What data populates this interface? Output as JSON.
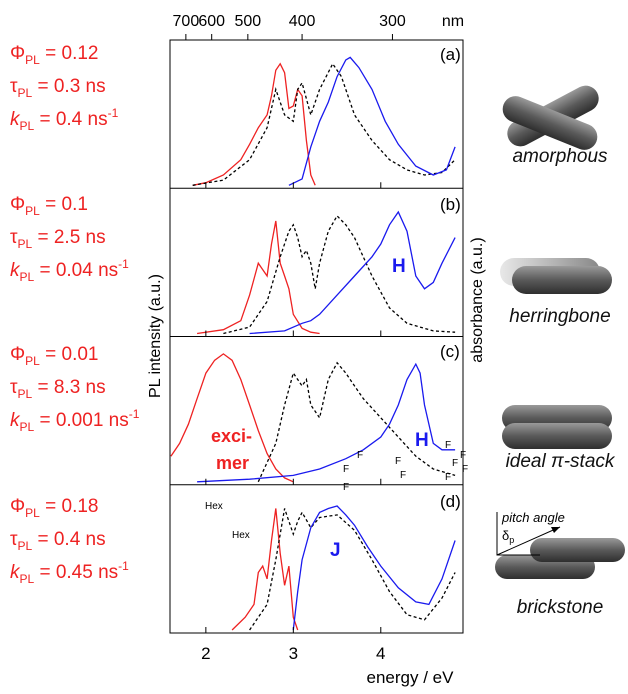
{
  "figure": {
    "ylabel": "PL intensity (a.u.)",
    "y2label": "absorbance (a.u.)"
  },
  "chart_data": [
    {
      "type": "line",
      "panel_label": "(a)",
      "xlim": [
        1.59,
        4.94
      ],
      "ylim": [
        0,
        1.05
      ],
      "x2ticks": [
        700,
        600,
        500,
        400,
        300
      ],
      "x2label": "nm",
      "photophysics": [
        {
          "symbol": "Φ",
          "sub": "PL",
          "text": " = 0.12"
        },
        {
          "symbol": "τ",
          "sub": "PL",
          "text": " = 0.3 ns"
        },
        {
          "symbol": "k",
          "sub": "PL",
          "text": " = 0.4 ns",
          "sup": "-1"
        }
      ],
      "packing": "amorphous",
      "series": [
        {
          "color": "#ee2222",
          "x": [
            1.85,
            2.0,
            2.2,
            2.4,
            2.5,
            2.6,
            2.7,
            2.75,
            2.8,
            2.85,
            2.9,
            2.95,
            3.0,
            3.05,
            3.1,
            3.15,
            3.2,
            3.25
          ],
          "values": [
            0,
            0.02,
            0.08,
            0.2,
            0.32,
            0.45,
            0.55,
            0.7,
            0.9,
            0.95,
            0.88,
            0.6,
            0.62,
            0.75,
            0.7,
            0.35,
            0.08,
            0
          ]
        },
        {
          "color": "#000000",
          "dash": true,
          "x": [
            1.85,
            2.2,
            2.5,
            2.7,
            2.8,
            2.9,
            3.0,
            3.05,
            3.1,
            3.2,
            3.3,
            3.45,
            3.55,
            3.7,
            3.9,
            4.1,
            4.3,
            4.5,
            4.7,
            4.85
          ],
          "values": [
            0,
            0.04,
            0.2,
            0.45,
            0.75,
            0.55,
            0.5,
            0.75,
            0.8,
            0.55,
            0.75,
            0.95,
            0.85,
            0.55,
            0.35,
            0.2,
            0.12,
            0.08,
            0.1,
            0.2
          ]
        },
        {
          "color": "#1a1aee",
          "x": [
            2.95,
            3.1,
            3.2,
            3.3,
            3.4,
            3.5,
            3.6,
            3.65,
            3.75,
            3.9,
            4.05,
            4.2,
            4.4,
            4.6,
            4.75,
            4.85
          ],
          "values": [
            0,
            0.05,
            0.3,
            0.5,
            0.65,
            0.85,
            0.98,
            1.0,
            0.92,
            0.75,
            0.5,
            0.32,
            0.15,
            0.08,
            0.12,
            0.3
          ]
        }
      ]
    },
    {
      "type": "line",
      "panel_label": "(b)",
      "xlim": [
        1.59,
        4.94
      ],
      "ylim": [
        0,
        1.05
      ],
      "photophysics": [
        {
          "symbol": "Φ",
          "sub": "PL",
          "text": " = 0.1"
        },
        {
          "symbol": "τ",
          "sub": "PL",
          "text": " = 2.5 ns"
        },
        {
          "symbol": "k",
          "sub": "PL",
          "text": " = 0.04 ns",
          "sup": "-1"
        }
      ],
      "packing": "herringbone",
      "band_label": "H",
      "series": [
        {
          "color": "#ee2222",
          "x": [
            1.9,
            2.2,
            2.4,
            2.5,
            2.6,
            2.65,
            2.7,
            2.75,
            2.8,
            2.85,
            2.9,
            2.95,
            3.0,
            3.1,
            3.2,
            3.3
          ],
          "values": [
            0,
            0.03,
            0.1,
            0.3,
            0.55,
            0.5,
            0.45,
            0.7,
            0.88,
            0.55,
            0.45,
            0.35,
            0.15,
            0.04,
            0.01,
            0
          ]
        },
        {
          "color": "#000000",
          "dash": true,
          "x": [
            2.2,
            2.5,
            2.7,
            2.85,
            2.95,
            3.0,
            3.05,
            3.1,
            3.15,
            3.2,
            3.25,
            3.3,
            3.4,
            3.5,
            3.6,
            3.7,
            3.9,
            4.1,
            4.3,
            4.6,
            4.85
          ],
          "values": [
            0,
            0.05,
            0.25,
            0.6,
            0.8,
            0.85,
            0.75,
            0.6,
            0.65,
            0.55,
            0.35,
            0.55,
            0.8,
            0.92,
            0.85,
            0.75,
            0.45,
            0.2,
            0.08,
            0.02,
            0.01
          ]
        },
        {
          "color": "#1a1aee",
          "x": [
            2.5,
            2.9,
            3.1,
            3.2,
            3.3,
            3.5,
            3.7,
            3.9,
            4.0,
            4.1,
            4.2,
            4.3,
            4.4,
            4.5,
            4.6,
            4.7,
            4.85
          ],
          "values": [
            0,
            0.02,
            0.08,
            0.1,
            0.15,
            0.3,
            0.45,
            0.6,
            0.7,
            0.85,
            0.95,
            0.8,
            0.45,
            0.35,
            0.4,
            0.55,
            0.75
          ]
        }
      ]
    },
    {
      "type": "line",
      "panel_label": "(c)",
      "xlim": [
        1.59,
        4.94
      ],
      "ylim": [
        0,
        1.05
      ],
      "photophysics": [
        {
          "symbol": "Φ",
          "sub": "PL",
          "text": " = 0.01"
        },
        {
          "symbol": "τ",
          "sub": "PL",
          "text": " = 8.3 ns"
        },
        {
          "symbol": "k",
          "sub": "PL",
          "text": " = 0.001 ns",
          "sup": "-1"
        }
      ],
      "packing": "ideal π-stack",
      "band_label": "H",
      "emission_label": [
        "exci-",
        "mer"
      ],
      "structure_labels": [
        "F",
        "F",
        "F",
        "F",
        "F",
        "F",
        "F",
        "F",
        "F",
        "F"
      ],
      "series": [
        {
          "color": "#ee2222",
          "x": [
            1.6,
            1.7,
            1.8,
            1.9,
            2.0,
            2.1,
            2.2,
            2.3,
            2.4,
            2.5,
            2.6,
            2.7,
            2.8,
            2.9,
            3.0
          ],
          "values": [
            0.2,
            0.3,
            0.45,
            0.65,
            0.85,
            0.95,
            1.0,
            0.95,
            0.8,
            0.6,
            0.4,
            0.22,
            0.1,
            0.03,
            0
          ]
        },
        {
          "color": "#000000",
          "dash": true,
          "x": [
            2.6,
            2.8,
            2.9,
            3.0,
            3.05,
            3.1,
            3.15,
            3.2,
            3.3,
            3.4,
            3.5,
            3.6,
            3.7,
            3.8,
            4.0,
            4.2,
            4.4,
            4.6,
            4.85
          ],
          "values": [
            0,
            0.3,
            0.6,
            0.85,
            0.8,
            0.75,
            0.8,
            0.6,
            0.5,
            0.8,
            0.93,
            0.85,
            0.75,
            0.65,
            0.5,
            0.35,
            0.2,
            0.1,
            0.05
          ]
        },
        {
          "color": "#1a1aee",
          "x": [
            1.9,
            2.5,
            3.0,
            3.3,
            3.6,
            3.8,
            4.0,
            4.1,
            4.2,
            4.3,
            4.4,
            4.45,
            4.5,
            4.6,
            4.7,
            4.85
          ],
          "values": [
            0,
            0.02,
            0.05,
            0.1,
            0.18,
            0.25,
            0.35,
            0.45,
            0.6,
            0.8,
            0.92,
            0.85,
            0.6,
            0.3,
            0.25,
            0.25
          ]
        }
      ]
    },
    {
      "type": "line",
      "panel_label": "(d)",
      "xlim": [
        1.59,
        4.94
      ],
      "ylim": [
        0,
        1.05
      ],
      "xticks": [
        2,
        3,
        4
      ],
      "xlabel": "energy  /  eV",
      "photophysics": [
        {
          "symbol": "Φ",
          "sub": "PL",
          "text": " = 0.18"
        },
        {
          "symbol": "τ",
          "sub": "PL",
          "text": " = 0.4 ns"
        },
        {
          "symbol": "k",
          "sub": "PL",
          "text": " = 0.45 ns",
          "sup": "-1"
        }
      ],
      "packing": "brickstone",
      "band_label": "J",
      "structure_labels": [
        "Hex",
        "Hex"
      ],
      "pitch_label": "pitch angle",
      "delta": {
        "symbol": "δ",
        "sub": "p"
      },
      "series": [
        {
          "color": "#ee2222",
          "x": [
            2.3,
            2.45,
            2.55,
            2.6,
            2.65,
            2.7,
            2.75,
            2.8,
            2.85,
            2.9,
            2.95,
            3.0,
            3.05
          ],
          "values": [
            0,
            0.1,
            0.2,
            0.45,
            0.5,
            0.4,
            0.7,
            0.95,
            0.6,
            0.35,
            0.5,
            0.1,
            0
          ]
        },
        {
          "color": "#000000",
          "dash": true,
          "x": [
            2.5,
            2.7,
            2.8,
            2.9,
            2.95,
            3.0,
            3.05,
            3.1,
            3.2,
            3.3,
            3.5,
            3.7,
            3.9,
            4.1,
            4.3,
            4.5,
            4.7,
            4.85
          ],
          "values": [
            0,
            0.2,
            0.55,
            0.95,
            0.85,
            0.75,
            0.85,
            0.92,
            0.8,
            0.88,
            0.9,
            0.78,
            0.55,
            0.3,
            0.12,
            0.08,
            0.25,
            0.45
          ]
        },
        {
          "color": "#1a1aee",
          "x": [
            3.0,
            3.05,
            3.1,
            3.2,
            3.3,
            3.4,
            3.5,
            3.6,
            3.7,
            3.85,
            4.0,
            4.2,
            4.4,
            4.55,
            4.7,
            4.85
          ],
          "values": [
            0,
            0.3,
            0.55,
            0.8,
            0.92,
            0.95,
            0.97,
            0.9,
            0.82,
            0.65,
            0.5,
            0.33,
            0.22,
            0.2,
            0.4,
            0.7
          ]
        }
      ]
    }
  ]
}
